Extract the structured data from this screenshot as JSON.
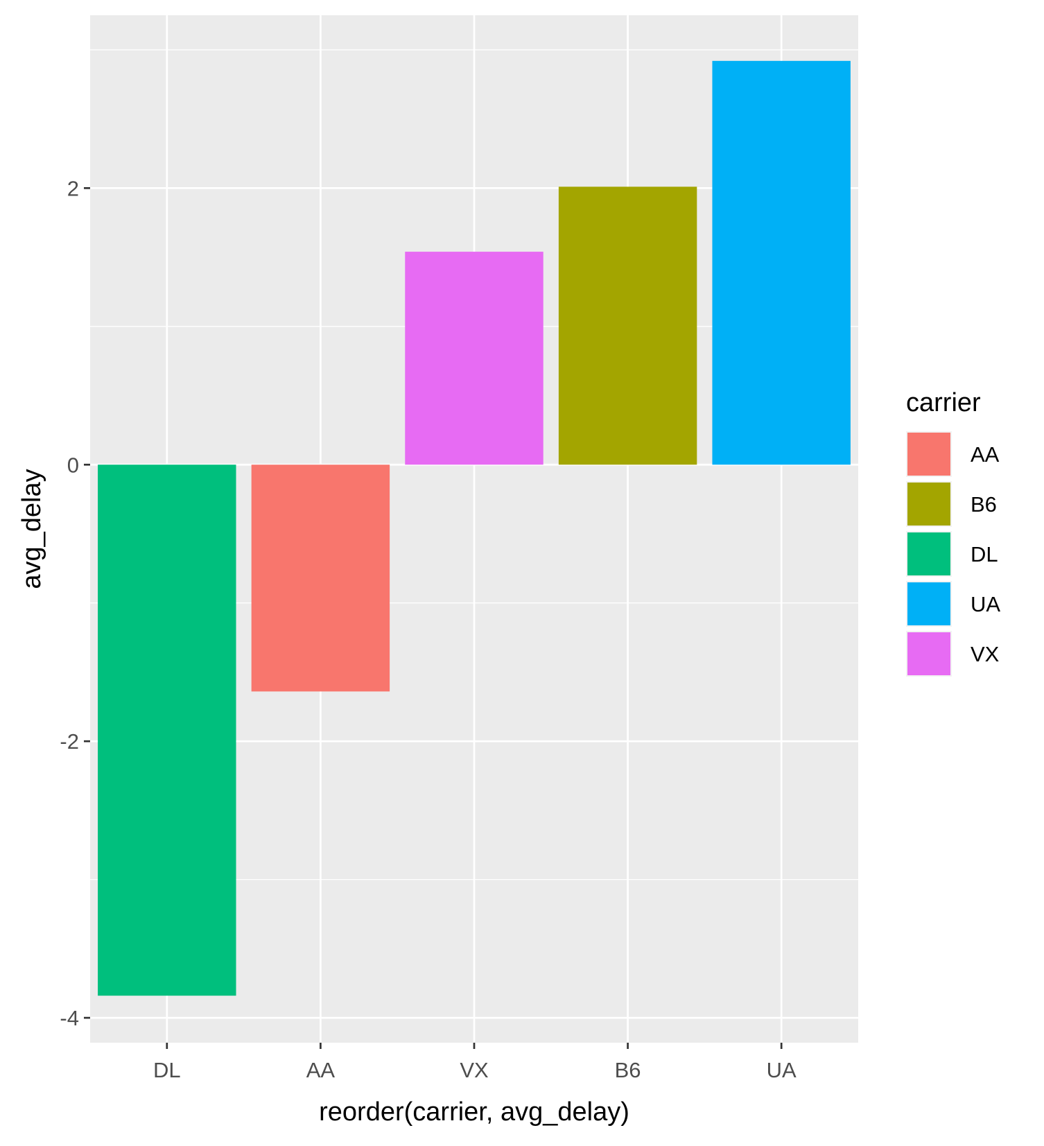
{
  "chart_data": {
    "type": "bar",
    "categories": [
      "DL",
      "AA",
      "VX",
      "B6",
      "UA"
    ],
    "values": [
      -3.84,
      -1.64,
      1.54,
      2.01,
      2.92
    ],
    "bar_colors": [
      "#00BF7D",
      "#F8766D",
      "#E76BF3",
      "#A3A500",
      "#00B0F6"
    ],
    "xlabel": "reorder(carrier, avg_delay)",
    "ylabel": "avg_delay",
    "ylim": [
      -4.18,
      3.25
    ],
    "yticks": [
      -4,
      -2,
      0,
      2
    ],
    "ytick_labels": [
      "-4",
      "-2",
      "0",
      "2"
    ],
    "grid": true,
    "panel_background": "#EBEBEB",
    "legend": {
      "title": "carrier",
      "placement": "right",
      "entries": [
        {
          "label": "AA",
          "color": "#F8766D"
        },
        {
          "label": "B6",
          "color": "#A3A500"
        },
        {
          "label": "DL",
          "color": "#00BF7D"
        },
        {
          "label": "UA",
          "color": "#00B0F6"
        },
        {
          "label": "VX",
          "color": "#E76BF3"
        }
      ]
    }
  }
}
